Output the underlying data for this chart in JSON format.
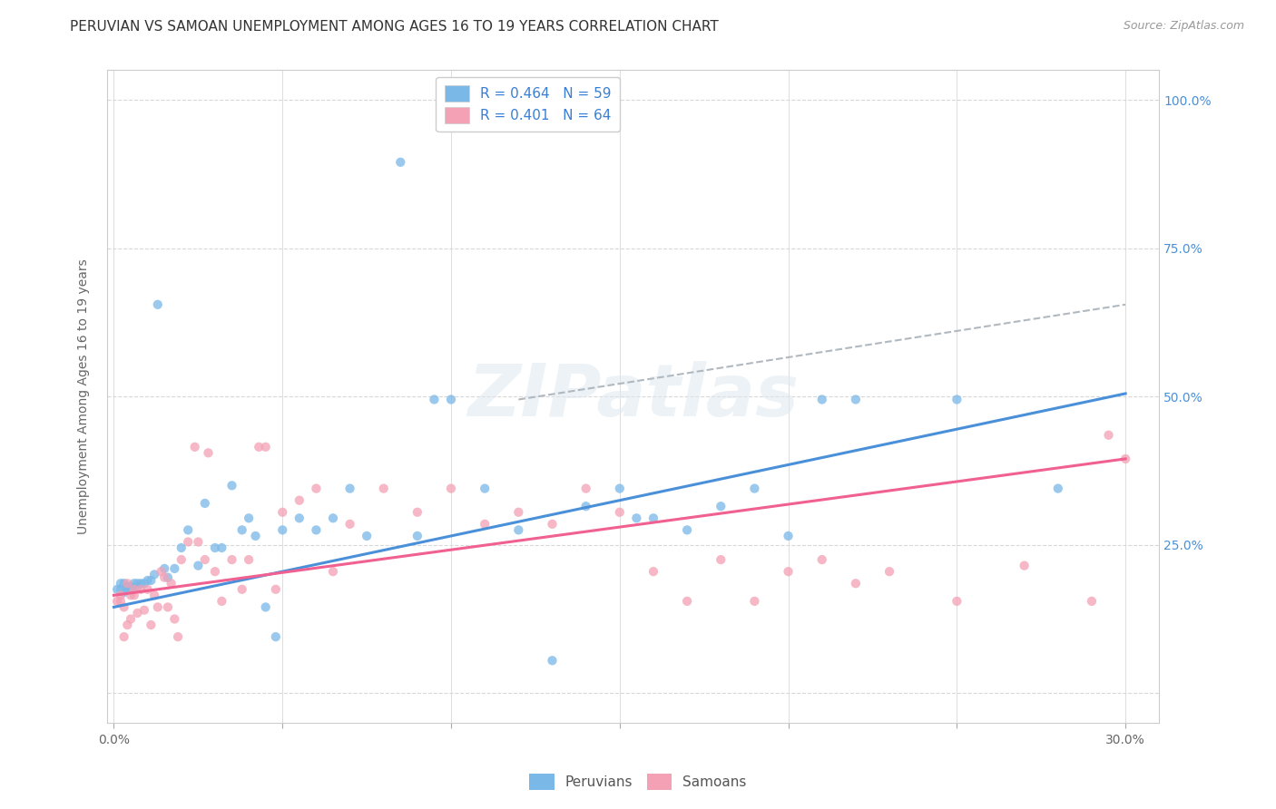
{
  "title": "PERUVIAN VS SAMOAN UNEMPLOYMENT AMONG AGES 16 TO 19 YEARS CORRELATION CHART",
  "source": "Source: ZipAtlas.com",
  "ylabel": "Unemployment Among Ages 16 to 19 years",
  "y_ticks": [
    0.0,
    0.25,
    0.5,
    0.75,
    1.0
  ],
  "y_tick_labels": [
    "",
    "25.0%",
    "50.0%",
    "75.0%",
    "100.0%"
  ],
  "x_ticks": [
    0.0,
    0.05,
    0.1,
    0.15,
    0.2,
    0.25,
    0.3
  ],
  "x_tick_labels_show": [
    "0.0%",
    "",
    "",
    "",
    "",
    "",
    "30.0%"
  ],
  "xlim": [
    -0.002,
    0.31
  ],
  "ylim": [
    -0.05,
    1.05
  ],
  "peruvian_R": 0.464,
  "peruvian_N": 59,
  "samoan_R": 0.401,
  "samoan_N": 64,
  "peruvian_color": "#7ab8e8",
  "samoan_color": "#f4a0b5",
  "peruvian_line_color": "#4a90d9",
  "samoan_line_color": "#f06090",
  "dashed_line_color": "#b0b8c0",
  "background_color": "#ffffff",
  "watermark": "ZIPatlas",
  "peruvian_line": [
    0.0,
    0.145,
    0.3,
    0.505
  ],
  "samoan_line": [
    0.0,
    0.165,
    0.3,
    0.395
  ],
  "dashed_line": [
    0.12,
    0.495,
    0.3,
    0.655
  ],
  "peruvians_x": [
    0.001,
    0.002,
    0.002,
    0.003,
    0.003,
    0.004,
    0.004,
    0.005,
    0.005,
    0.006,
    0.006,
    0.007,
    0.007,
    0.008,
    0.009,
    0.01,
    0.011,
    0.012,
    0.013,
    0.015,
    0.016,
    0.018,
    0.02,
    0.022,
    0.025,
    0.027,
    0.03,
    0.032,
    0.035,
    0.038,
    0.04,
    0.042,
    0.045,
    0.048,
    0.05,
    0.055,
    0.06,
    0.065,
    0.07,
    0.075,
    0.085,
    0.09,
    0.095,
    0.1,
    0.11,
    0.12,
    0.13,
    0.14,
    0.15,
    0.155,
    0.16,
    0.17,
    0.18,
    0.19,
    0.2,
    0.21,
    0.22,
    0.25,
    0.28
  ],
  "peruvians_y": [
    0.175,
    0.175,
    0.185,
    0.17,
    0.185,
    0.175,
    0.18,
    0.18,
    0.175,
    0.185,
    0.175,
    0.18,
    0.185,
    0.185,
    0.185,
    0.19,
    0.19,
    0.2,
    0.655,
    0.21,
    0.195,
    0.21,
    0.245,
    0.275,
    0.215,
    0.32,
    0.245,
    0.245,
    0.35,
    0.275,
    0.295,
    0.265,
    0.145,
    0.095,
    0.275,
    0.295,
    0.275,
    0.295,
    0.345,
    0.265,
    0.895,
    0.265,
    0.495,
    0.495,
    0.345,
    0.275,
    0.055,
    0.315,
    0.345,
    0.295,
    0.295,
    0.275,
    0.315,
    0.345,
    0.265,
    0.495,
    0.495,
    0.495,
    0.345
  ],
  "samoans_x": [
    0.001,
    0.002,
    0.002,
    0.003,
    0.003,
    0.004,
    0.004,
    0.005,
    0.005,
    0.006,
    0.006,
    0.007,
    0.008,
    0.009,
    0.01,
    0.011,
    0.012,
    0.013,
    0.014,
    0.015,
    0.016,
    0.017,
    0.018,
    0.019,
    0.02,
    0.022,
    0.024,
    0.025,
    0.027,
    0.028,
    0.03,
    0.032,
    0.035,
    0.038,
    0.04,
    0.043,
    0.045,
    0.048,
    0.05,
    0.055,
    0.06,
    0.065,
    0.07,
    0.08,
    0.09,
    0.1,
    0.11,
    0.12,
    0.13,
    0.14,
    0.15,
    0.16,
    0.17,
    0.18,
    0.19,
    0.2,
    0.21,
    0.22,
    0.23,
    0.25,
    0.27,
    0.29,
    0.295,
    0.3
  ],
  "samoans_y": [
    0.155,
    0.165,
    0.155,
    0.095,
    0.145,
    0.115,
    0.185,
    0.165,
    0.125,
    0.175,
    0.165,
    0.135,
    0.175,
    0.14,
    0.175,
    0.115,
    0.165,
    0.145,
    0.205,
    0.195,
    0.145,
    0.185,
    0.125,
    0.095,
    0.225,
    0.255,
    0.415,
    0.255,
    0.225,
    0.405,
    0.205,
    0.155,
    0.225,
    0.175,
    0.225,
    0.415,
    0.415,
    0.175,
    0.305,
    0.325,
    0.345,
    0.205,
    0.285,
    0.345,
    0.305,
    0.345,
    0.285,
    0.305,
    0.285,
    0.345,
    0.305,
    0.205,
    0.155,
    0.225,
    0.155,
    0.205,
    0.225,
    0.185,
    0.205,
    0.155,
    0.215,
    0.155,
    0.435,
    0.395
  ],
  "grid_color": "#d8d8d8",
  "title_fontsize": 11,
  "axis_label_fontsize": 10,
  "tick_fontsize": 10,
  "legend_fontsize": 11
}
